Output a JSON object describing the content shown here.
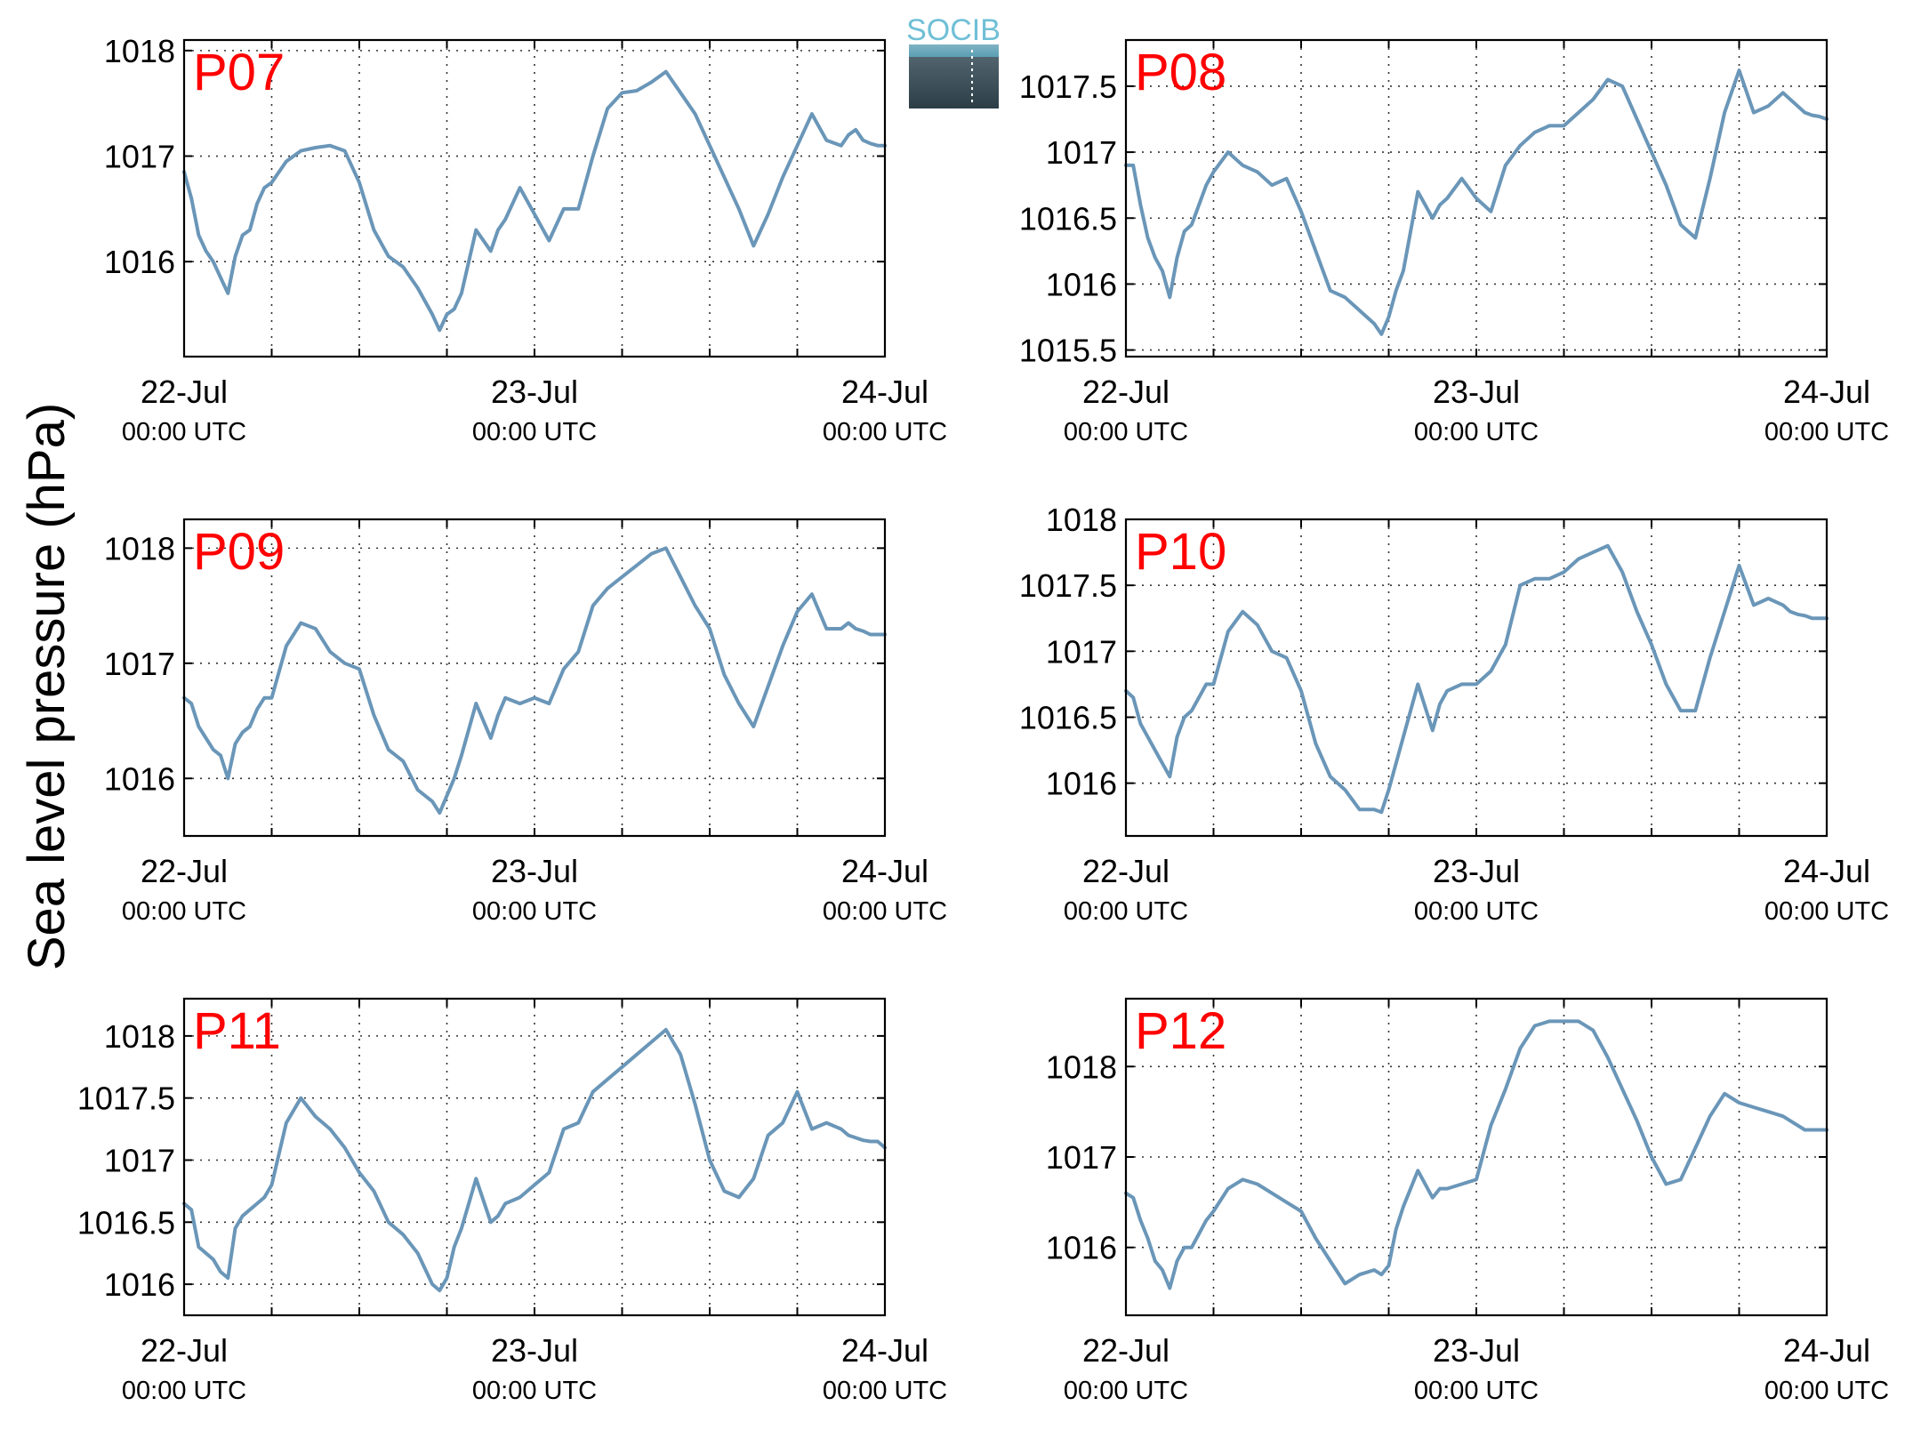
{
  "figure": {
    "ylabel": "Sea level pressure (hPa)",
    "logo_text": "SOCIB",
    "line_color": "#6a96b8",
    "station_label_color": "#ff0000",
    "grid": "dotted"
  },
  "chart_data": [
    {
      "type": "line",
      "station": "P07",
      "x_ticks": [
        {
          "line1": "22-Jul",
          "line2": "00:00 UTC"
        },
        {
          "line1": "23-Jul",
          "line2": "00:00 UTC"
        },
        {
          "line1": "24-Jul",
          "line2": "00:00 UTC"
        }
      ],
      "xlim": [
        0,
        48
      ],
      "ylim": [
        1015.1,
        1018.1
      ],
      "y_ticks": [
        "1016",
        "1017",
        "1018"
      ],
      "series": [
        {
          "x": [
            0,
            0.5,
            1,
            1.5,
            2,
            2.5,
            3,
            3.5,
            4,
            4.5,
            5,
            5.5,
            6,
            7,
            8,
            9,
            10,
            11,
            12,
            13,
            14,
            15,
            16,
            17,
            17.5,
            18,
            18.5,
            19,
            20,
            21,
            21.5,
            22,
            23,
            24,
            25,
            26,
            27,
            28,
            29,
            30,
            31,
            32,
            33,
            34,
            35,
            36,
            37,
            38,
            39,
            40,
            41,
            42,
            43,
            44,
            45,
            45.5,
            46,
            46.5,
            47,
            47.5,
            48
          ],
          "y": [
            1016.85,
            1016.6,
            1016.25,
            1016.1,
            1016.0,
            1015.85,
            1015.7,
            1016.05,
            1016.25,
            1016.3,
            1016.55,
            1016.7,
            1016.75,
            1016.95,
            1017.05,
            1017.08,
            1017.1,
            1017.05,
            1016.75,
            1016.3,
            1016.05,
            1015.95,
            1015.75,
            1015.5,
            1015.35,
            1015.5,
            1015.55,
            1015.7,
            1016.3,
            1016.1,
            1016.3,
            1016.4,
            1016.7,
            1016.45,
            1016.2,
            1016.5,
            1016.5,
            1017.0,
            1017.45,
            1017.6,
            1017.62,
            1017.7,
            1017.8,
            1017.6,
            1017.4,
            1017.1,
            1016.8,
            1016.5,
            1016.15,
            1016.45,
            1016.8,
            1017.1,
            1017.4,
            1017.15,
            1017.1,
            1017.2,
            1017.25,
            1017.15,
            1017.12,
            1017.1,
            1017.1
          ]
        }
      ]
    },
    {
      "type": "line",
      "station": "P08",
      "x_ticks": [
        {
          "line1": "22-Jul",
          "line2": "00:00 UTC"
        },
        {
          "line1": "23-Jul",
          "line2": "00:00 UTC"
        },
        {
          "line1": "24-Jul",
          "line2": "00:00 UTC"
        }
      ],
      "xlim": [
        0,
        48
      ],
      "ylim": [
        1015.45,
        1017.85
      ],
      "y_ticks": [
        "1015.5",
        "1016",
        "1016.5",
        "1017",
        "1017.5"
      ],
      "series": [
        {
          "x": [
            0,
            0.5,
            1,
            1.5,
            2,
            2.5,
            3,
            3.5,
            4,
            4.5,
            5,
            5.5,
            6,
            7,
            8,
            9,
            10,
            11,
            12,
            13,
            14,
            15,
            16,
            17,
            17.5,
            18,
            18.5,
            19,
            20,
            21,
            21.5,
            22,
            23,
            24,
            25,
            26,
            27,
            28,
            29,
            30,
            31,
            32,
            33,
            34,
            35,
            36,
            37,
            38,
            39,
            40,
            41,
            42,
            43,
            44,
            45,
            45.5,
            46,
            46.5,
            47,
            47.5,
            48
          ],
          "y": [
            1016.9,
            1016.9,
            1016.6,
            1016.35,
            1016.2,
            1016.1,
            1015.9,
            1016.2,
            1016.4,
            1016.45,
            1016.6,
            1016.75,
            1016.85,
            1017.0,
            1016.9,
            1016.85,
            1016.75,
            1016.8,
            1016.55,
            1016.25,
            1015.95,
            1015.9,
            1015.8,
            1015.7,
            1015.62,
            1015.75,
            1015.95,
            1016.1,
            1016.7,
            1016.5,
            1016.6,
            1016.65,
            1016.8,
            1016.65,
            1016.55,
            1016.9,
            1017.05,
            1017.15,
            1017.2,
            1017.2,
            1017.3,
            1017.4,
            1017.55,
            1017.5,
            1017.25,
            1017.0,
            1016.75,
            1016.45,
            1016.35,
            1016.8,
            1017.3,
            1017.62,
            1017.3,
            1017.35,
            1017.45,
            1017.4,
            1017.35,
            1017.3,
            1017.28,
            1017.27,
            1017.25
          ]
        }
      ]
    },
    {
      "type": "line",
      "station": "P09",
      "x_ticks": [
        {
          "line1": "22-Jul",
          "line2": "00:00 UTC"
        },
        {
          "line1": "23-Jul",
          "line2": "00:00 UTC"
        },
        {
          "line1": "24-Jul",
          "line2": "00:00 UTC"
        }
      ],
      "xlim": [
        0,
        48
      ],
      "ylim": [
        1015.5,
        1018.25
      ],
      "y_ticks": [
        "1016",
        "1017",
        "1018"
      ],
      "series": [
        {
          "x": [
            0,
            0.5,
            1,
            1.5,
            2,
            2.5,
            3,
            3.5,
            4,
            4.5,
            5,
            5.5,
            6,
            7,
            8,
            9,
            10,
            11,
            12,
            13,
            14,
            15,
            16,
            17,
            17.5,
            18,
            18.5,
            19,
            20,
            21,
            21.5,
            22,
            23,
            24,
            25,
            26,
            27,
            28,
            29,
            30,
            31,
            32,
            33,
            34,
            35,
            36,
            37,
            38,
            39,
            40,
            41,
            42,
            43,
            44,
            45,
            45.5,
            46,
            46.5,
            47,
            47.5,
            48
          ],
          "y": [
            1016.7,
            1016.65,
            1016.45,
            1016.35,
            1016.25,
            1016.2,
            1016.0,
            1016.3,
            1016.4,
            1016.45,
            1016.6,
            1016.7,
            1016.7,
            1017.15,
            1017.35,
            1017.3,
            1017.1,
            1017.0,
            1016.95,
            1016.55,
            1016.25,
            1016.15,
            1015.9,
            1015.8,
            1015.7,
            1015.85,
            1016.0,
            1016.2,
            1016.65,
            1016.35,
            1016.55,
            1016.7,
            1016.65,
            1016.7,
            1016.65,
            1016.95,
            1017.1,
            1017.5,
            1017.65,
            1017.75,
            1017.85,
            1017.95,
            1018.0,
            1017.75,
            1017.5,
            1017.3,
            1016.9,
            1016.65,
            1016.45,
            1016.8,
            1017.15,
            1017.45,
            1017.6,
            1017.3,
            1017.3,
            1017.35,
            1017.3,
            1017.28,
            1017.25,
            1017.25,
            1017.25
          ]
        }
      ]
    },
    {
      "type": "line",
      "station": "P10",
      "x_ticks": [
        {
          "line1": "22-Jul",
          "line2": "00:00 UTC"
        },
        {
          "line1": "23-Jul",
          "line2": "00:00 UTC"
        },
        {
          "line1": "24-Jul",
          "line2": "00:00 UTC"
        }
      ],
      "xlim": [
        0,
        48
      ],
      "ylim": [
        1015.6,
        1018.0
      ],
      "y_ticks": [
        "1016",
        "1016.5",
        "1017",
        "1017.5",
        "1018"
      ],
      "series": [
        {
          "x": [
            0,
            0.5,
            1,
            1.5,
            2,
            2.5,
            3,
            3.5,
            4,
            4.5,
            5,
            5.5,
            6,
            7,
            8,
            9,
            10,
            11,
            12,
            13,
            14,
            15,
            16,
            17,
            17.5,
            18,
            18.5,
            19,
            20,
            21,
            21.5,
            22,
            23,
            24,
            25,
            26,
            27,
            28,
            29,
            30,
            31,
            32,
            33,
            34,
            35,
            36,
            37,
            38,
            39,
            40,
            41,
            42,
            43,
            44,
            45,
            45.5,
            46,
            46.5,
            47,
            47.5,
            48
          ],
          "y": [
            1016.7,
            1016.65,
            1016.45,
            1016.35,
            1016.25,
            1016.15,
            1016.05,
            1016.35,
            1016.5,
            1016.55,
            1016.65,
            1016.75,
            1016.75,
            1017.15,
            1017.3,
            1017.2,
            1017.0,
            1016.95,
            1016.7,
            1016.3,
            1016.05,
            1015.95,
            1015.8,
            1015.8,
            1015.78,
            1015.95,
            1016.15,
            1016.35,
            1016.75,
            1016.4,
            1016.6,
            1016.7,
            1016.75,
            1016.75,
            1016.85,
            1017.05,
            1017.5,
            1017.55,
            1017.55,
            1017.6,
            1017.7,
            1017.75,
            1017.8,
            1017.6,
            1017.3,
            1017.05,
            1016.75,
            1016.55,
            1016.55,
            1016.95,
            1017.3,
            1017.65,
            1017.35,
            1017.4,
            1017.35,
            1017.3,
            1017.28,
            1017.27,
            1017.25,
            1017.25,
            1017.25
          ]
        }
      ]
    },
    {
      "type": "line",
      "station": "P11",
      "x_ticks": [
        {
          "line1": "22-Jul",
          "line2": "00:00 UTC"
        },
        {
          "line1": "23-Jul",
          "line2": "00:00 UTC"
        },
        {
          "line1": "24-Jul",
          "line2": "00:00 UTC"
        }
      ],
      "xlim": [
        0,
        48
      ],
      "ylim": [
        1015.75,
        1018.3
      ],
      "y_ticks": [
        "1016",
        "1016.5",
        "1017",
        "1017.5",
        "1018"
      ],
      "series": [
        {
          "x": [
            0,
            0.5,
            1,
            1.5,
            2,
            2.5,
            3,
            3.5,
            4,
            4.5,
            5,
            5.5,
            6,
            7,
            8,
            9,
            10,
            11,
            12,
            13,
            14,
            15,
            16,
            17,
            17.5,
            18,
            18.5,
            19,
            20,
            21,
            21.5,
            22,
            23,
            24,
            25,
            26,
            27,
            28,
            29,
            30,
            31,
            32,
            33,
            34,
            35,
            36,
            37,
            38,
            39,
            40,
            41,
            42,
            43,
            44,
            45,
            45.5,
            46,
            46.5,
            47,
            47.5,
            48
          ],
          "y": [
            1016.65,
            1016.6,
            1016.3,
            1016.25,
            1016.2,
            1016.1,
            1016.05,
            1016.45,
            1016.55,
            1016.6,
            1016.65,
            1016.7,
            1016.8,
            1017.3,
            1017.5,
            1017.35,
            1017.25,
            1017.1,
            1016.9,
            1016.75,
            1016.5,
            1016.4,
            1016.25,
            1016.0,
            1015.95,
            1016.05,
            1016.3,
            1016.45,
            1016.85,
            1016.5,
            1016.55,
            1016.65,
            1016.7,
            1016.8,
            1016.9,
            1017.25,
            1017.3,
            1017.55,
            1017.65,
            1017.75,
            1017.85,
            1017.95,
            1018.05,
            1017.85,
            1017.45,
            1017.0,
            1016.75,
            1016.7,
            1016.85,
            1017.2,
            1017.3,
            1017.55,
            1017.25,
            1017.3,
            1017.25,
            1017.2,
            1017.18,
            1017.16,
            1017.15,
            1017.15,
            1017.1
          ]
        }
      ]
    },
    {
      "type": "line",
      "station": "P12",
      "x_ticks": [
        {
          "line1": "22-Jul",
          "line2": "00:00 UTC"
        },
        {
          "line1": "23-Jul",
          "line2": "00:00 UTC"
        },
        {
          "line1": "24-Jul",
          "line2": "00:00 UTC"
        }
      ],
      "xlim": [
        0,
        48
      ],
      "ylim": [
        1015.25,
        1018.75
      ],
      "y_ticks": [
        "1016",
        "1017",
        "1018"
      ],
      "series": [
        {
          "x": [
            0,
            0.5,
            1,
            1.5,
            2,
            2.5,
            3,
            3.5,
            4,
            4.5,
            5,
            5.5,
            6,
            7,
            8,
            9,
            10,
            11,
            12,
            13,
            14,
            15,
            16,
            17,
            17.5,
            18,
            18.5,
            19,
            20,
            21,
            21.5,
            22,
            23,
            24,
            25,
            26,
            27,
            28,
            29,
            30,
            31,
            32,
            33,
            34,
            35,
            36,
            37,
            38,
            39,
            40,
            41,
            42,
            43,
            44,
            45,
            45.5,
            46,
            46.5,
            47,
            47.5,
            48
          ],
          "y": [
            1016.6,
            1016.55,
            1016.3,
            1016.1,
            1015.85,
            1015.75,
            1015.55,
            1015.85,
            1016.0,
            1016.0,
            1016.15,
            1016.3,
            1016.4,
            1016.65,
            1016.75,
            1016.7,
            1016.6,
            1016.5,
            1016.4,
            1016.1,
            1015.85,
            1015.6,
            1015.7,
            1015.75,
            1015.7,
            1015.8,
            1016.2,
            1016.45,
            1016.85,
            1016.55,
            1016.65,
            1016.65,
            1016.7,
            1016.75,
            1017.35,
            1017.75,
            1018.2,
            1018.45,
            1018.5,
            1018.5,
            1018.5,
            1018.4,
            1018.1,
            1017.75,
            1017.4,
            1017.0,
            1016.7,
            1016.75,
            1017.1,
            1017.45,
            1017.7,
            1017.6,
            1017.55,
            1017.5,
            1017.45,
            1017.4,
            1017.35,
            1017.3,
            1017.3,
            1017.3,
            1017.3
          ]
        }
      ]
    }
  ]
}
